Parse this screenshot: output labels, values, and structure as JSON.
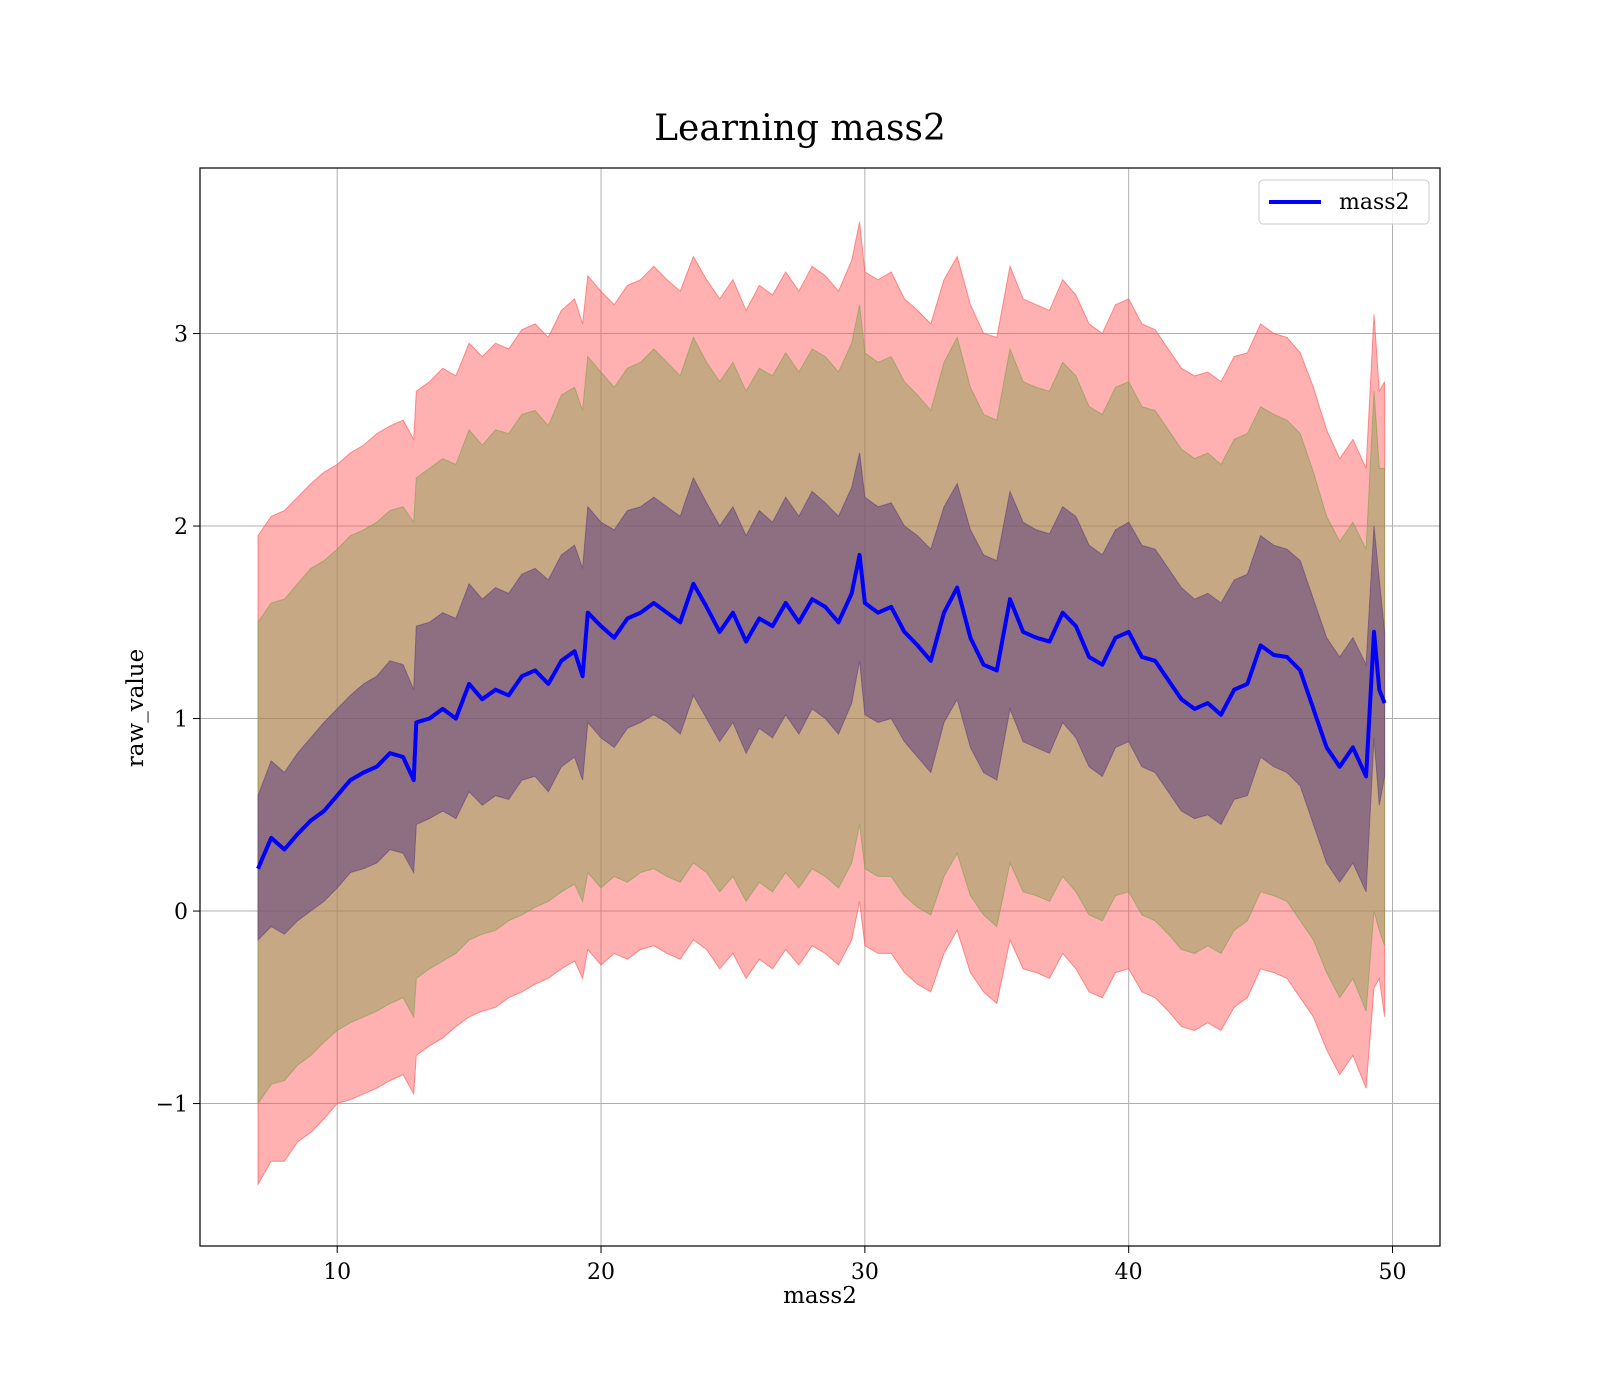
{
  "chart_data": {
    "type": "line",
    "title": "Learning mass2",
    "xlabel": "mass2",
    "ylabel": "raw_value",
    "xlim": [
      4.8,
      51.8
    ],
    "ylim": [
      -1.74,
      3.86
    ],
    "xticks": [
      10,
      20,
      30,
      40,
      50
    ],
    "xtick_labels": [
      "10",
      "20",
      "30",
      "40",
      "50"
    ],
    "yticks": [
      -1,
      0,
      1,
      2,
      3
    ],
    "ytick_labels": [
      "−1",
      "0",
      "1",
      "2",
      "3"
    ],
    "grid": true,
    "legend_position": "upper-right",
    "series": [
      {
        "name": "mass2",
        "color": "#0000ff",
        "x": [
          7.0,
          7.5,
          8.0,
          8.5,
          9.0,
          9.5,
          10.0,
          10.5,
          11.0,
          11.5,
          12.0,
          12.5,
          12.9,
          13.0,
          13.5,
          14.0,
          14.5,
          15.0,
          15.5,
          16.0,
          16.5,
          17.0,
          17.5,
          18.0,
          18.5,
          19.0,
          19.3,
          19.5,
          20.0,
          20.5,
          21.0,
          21.5,
          22.0,
          22.5,
          23.0,
          23.5,
          24.0,
          24.5,
          25.0,
          25.5,
          26.0,
          26.5,
          27.0,
          27.5,
          28.0,
          28.5,
          29.0,
          29.5,
          29.8,
          30.0,
          30.5,
          31.0,
          31.5,
          32.0,
          32.5,
          33.0,
          33.5,
          34.0,
          34.5,
          35.0,
          35.5,
          36.0,
          36.5,
          37.0,
          37.5,
          38.0,
          38.5,
          39.0,
          39.5,
          40.0,
          40.5,
          41.0,
          41.5,
          42.0,
          42.5,
          43.0,
          43.5,
          44.0,
          44.5,
          45.0,
          45.5,
          46.0,
          46.5,
          47.0,
          47.5,
          48.0,
          48.5,
          49.0,
          49.3,
          49.5,
          49.7
        ],
        "y": [
          0.22,
          0.38,
          0.32,
          0.4,
          0.47,
          0.52,
          0.6,
          0.68,
          0.72,
          0.75,
          0.82,
          0.8,
          0.68,
          0.98,
          1.0,
          1.05,
          1.0,
          1.18,
          1.1,
          1.15,
          1.12,
          1.22,
          1.25,
          1.18,
          1.3,
          1.35,
          1.22,
          1.55,
          1.48,
          1.42,
          1.52,
          1.55,
          1.6,
          1.55,
          1.5,
          1.7,
          1.58,
          1.45,
          1.55,
          1.4,
          1.52,
          1.48,
          1.6,
          1.5,
          1.62,
          1.58,
          1.5,
          1.65,
          1.85,
          1.6,
          1.55,
          1.58,
          1.45,
          1.38,
          1.3,
          1.55,
          1.68,
          1.42,
          1.28,
          1.25,
          1.62,
          1.45,
          1.42,
          1.4,
          1.55,
          1.48,
          1.32,
          1.28,
          1.42,
          1.45,
          1.32,
          1.3,
          1.2,
          1.1,
          1.05,
          1.08,
          1.02,
          1.15,
          1.18,
          1.38,
          1.33,
          1.32,
          1.25,
          1.05,
          0.85,
          0.75,
          0.85,
          0.7,
          1.45,
          1.15,
          1.08
        ]
      }
    ],
    "bands": [
      {
        "color": "#ff5050",
        "opacity": 0.45,
        "lower": [
          -1.42,
          -1.3,
          -1.3,
          -1.2,
          -1.15,
          -1.08,
          -1.0,
          -0.98,
          -0.95,
          -0.92,
          -0.88,
          -0.85,
          -0.95,
          -0.75,
          -0.7,
          -0.66,
          -0.6,
          -0.55,
          -0.52,
          -0.5,
          -0.45,
          -0.42,
          -0.38,
          -0.35,
          -0.3,
          -0.26,
          -0.35,
          -0.2,
          -0.28,
          -0.22,
          -0.25,
          -0.2,
          -0.18,
          -0.22,
          -0.25,
          -0.15,
          -0.2,
          -0.3,
          -0.22,
          -0.35,
          -0.25,
          -0.3,
          -0.2,
          -0.28,
          -0.18,
          -0.22,
          -0.28,
          -0.15,
          0.05,
          -0.18,
          -0.22,
          -0.22,
          -0.32,
          -0.38,
          -0.42,
          -0.22,
          -0.1,
          -0.32,
          -0.42,
          -0.48,
          -0.15,
          -0.3,
          -0.32,
          -0.35,
          -0.22,
          -0.3,
          -0.42,
          -0.45,
          -0.32,
          -0.3,
          -0.42,
          -0.45,
          -0.52,
          -0.6,
          -0.62,
          -0.58,
          -0.62,
          -0.5,
          -0.45,
          -0.3,
          -0.32,
          -0.35,
          -0.45,
          -0.55,
          -0.72,
          -0.85,
          -0.75,
          -0.92,
          -0.4,
          -0.35,
          -0.55
        ],
        "upper": [
          1.95,
          2.05,
          2.08,
          2.15,
          2.22,
          2.28,
          2.32,
          2.38,
          2.42,
          2.48,
          2.52,
          2.55,
          2.45,
          2.7,
          2.75,
          2.82,
          2.78,
          2.95,
          2.88,
          2.95,
          2.92,
          3.02,
          3.05,
          2.98,
          3.12,
          3.18,
          3.05,
          3.3,
          3.22,
          3.15,
          3.25,
          3.28,
          3.35,
          3.28,
          3.22,
          3.4,
          3.28,
          3.18,
          3.28,
          3.12,
          3.25,
          3.2,
          3.32,
          3.22,
          3.35,
          3.3,
          3.22,
          3.38,
          3.58,
          3.32,
          3.28,
          3.32,
          3.18,
          3.12,
          3.05,
          3.28,
          3.4,
          3.15,
          3.0,
          2.98,
          3.35,
          3.18,
          3.15,
          3.12,
          3.28,
          3.2,
          3.05,
          3.0,
          3.15,
          3.18,
          3.05,
          3.02,
          2.92,
          2.82,
          2.78,
          2.8,
          2.75,
          2.88,
          2.9,
          3.05,
          3.0,
          2.98,
          2.9,
          2.72,
          2.5,
          2.35,
          2.45,
          2.3,
          3.1,
          2.7,
          2.75
        ]
      },
      {
        "color": "#80a050",
        "opacity": 0.45,
        "lower": [
          -1.0,
          -0.9,
          -0.88,
          -0.8,
          -0.75,
          -0.68,
          -0.62,
          -0.58,
          -0.55,
          -0.52,
          -0.48,
          -0.45,
          -0.55,
          -0.35,
          -0.3,
          -0.26,
          -0.22,
          -0.15,
          -0.12,
          -0.1,
          -0.05,
          -0.02,
          0.02,
          0.05,
          0.1,
          0.14,
          0.05,
          0.2,
          0.12,
          0.18,
          0.15,
          0.2,
          0.22,
          0.18,
          0.15,
          0.25,
          0.2,
          0.1,
          0.18,
          0.05,
          0.15,
          0.1,
          0.2,
          0.12,
          0.22,
          0.18,
          0.12,
          0.25,
          0.45,
          0.22,
          0.18,
          0.18,
          0.08,
          0.02,
          -0.02,
          0.18,
          0.3,
          0.08,
          -0.02,
          -0.08,
          0.25,
          0.1,
          0.08,
          0.05,
          0.18,
          0.1,
          -0.02,
          -0.05,
          0.08,
          0.1,
          -0.02,
          -0.05,
          -0.12,
          -0.2,
          -0.22,
          -0.18,
          -0.22,
          -0.1,
          -0.05,
          0.1,
          0.08,
          0.05,
          -0.05,
          -0.15,
          -0.32,
          -0.45,
          -0.35,
          -0.52,
          0.0,
          -0.1,
          -0.18
        ],
        "upper": [
          1.5,
          1.6,
          1.62,
          1.7,
          1.78,
          1.82,
          1.88,
          1.95,
          1.98,
          2.02,
          2.08,
          2.1,
          2.02,
          2.25,
          2.3,
          2.35,
          2.32,
          2.5,
          2.42,
          2.5,
          2.48,
          2.58,
          2.6,
          2.52,
          2.68,
          2.72,
          2.6,
          2.88,
          2.8,
          2.72,
          2.82,
          2.85,
          2.92,
          2.85,
          2.78,
          2.98,
          2.85,
          2.75,
          2.85,
          2.7,
          2.82,
          2.78,
          2.9,
          2.8,
          2.92,
          2.88,
          2.8,
          2.95,
          3.15,
          2.9,
          2.85,
          2.88,
          2.75,
          2.68,
          2.6,
          2.85,
          2.98,
          2.72,
          2.58,
          2.55,
          2.92,
          2.75,
          2.72,
          2.7,
          2.85,
          2.78,
          2.62,
          2.58,
          2.72,
          2.75,
          2.62,
          2.6,
          2.5,
          2.4,
          2.35,
          2.38,
          2.32,
          2.45,
          2.48,
          2.62,
          2.58,
          2.55,
          2.48,
          2.28,
          2.05,
          1.92,
          2.02,
          1.88,
          2.7,
          2.3,
          2.3
        ]
      },
      {
        "color": "#604080",
        "opacity": 0.55,
        "lower": [
          -0.15,
          -0.08,
          -0.12,
          -0.05,
          0.0,
          0.05,
          0.12,
          0.2,
          0.22,
          0.25,
          0.32,
          0.3,
          0.2,
          0.45,
          0.48,
          0.52,
          0.48,
          0.62,
          0.55,
          0.6,
          0.58,
          0.68,
          0.7,
          0.62,
          0.75,
          0.8,
          0.68,
          0.98,
          0.9,
          0.85,
          0.95,
          0.98,
          1.02,
          0.98,
          0.92,
          1.12,
          1.0,
          0.88,
          0.98,
          0.82,
          0.95,
          0.9,
          1.02,
          0.92,
          1.05,
          1.0,
          0.92,
          1.08,
          1.3,
          1.02,
          0.98,
          1.0,
          0.88,
          0.8,
          0.72,
          0.98,
          1.1,
          0.85,
          0.72,
          0.68,
          1.05,
          0.88,
          0.85,
          0.82,
          0.98,
          0.9,
          0.75,
          0.7,
          0.85,
          0.88,
          0.75,
          0.72,
          0.62,
          0.52,
          0.48,
          0.5,
          0.45,
          0.58,
          0.6,
          0.8,
          0.75,
          0.72,
          0.65,
          0.45,
          0.25,
          0.15,
          0.25,
          0.1,
          0.9,
          0.55,
          0.7
        ],
        "upper": [
          0.6,
          0.78,
          0.72,
          0.82,
          0.9,
          0.98,
          1.05,
          1.12,
          1.18,
          1.22,
          1.3,
          1.28,
          1.15,
          1.48,
          1.5,
          1.55,
          1.52,
          1.7,
          1.62,
          1.68,
          1.65,
          1.75,
          1.78,
          1.72,
          1.85,
          1.9,
          1.78,
          2.1,
          2.02,
          1.98,
          2.08,
          2.1,
          2.15,
          2.1,
          2.05,
          2.25,
          2.12,
          2.0,
          2.1,
          1.95,
          2.08,
          2.02,
          2.15,
          2.05,
          2.18,
          2.12,
          2.05,
          2.2,
          2.38,
          2.15,
          2.1,
          2.12,
          2.0,
          1.95,
          1.88,
          2.1,
          2.22,
          1.98,
          1.85,
          1.82,
          2.18,
          2.02,
          1.98,
          1.96,
          2.1,
          2.05,
          1.9,
          1.85,
          1.98,
          2.02,
          1.9,
          1.88,
          1.78,
          1.68,
          1.62,
          1.65,
          1.6,
          1.72,
          1.75,
          1.95,
          1.9,
          1.88,
          1.82,
          1.62,
          1.42,
          1.32,
          1.42,
          1.28,
          2.0,
          1.72,
          1.45
        ]
      }
    ]
  }
}
